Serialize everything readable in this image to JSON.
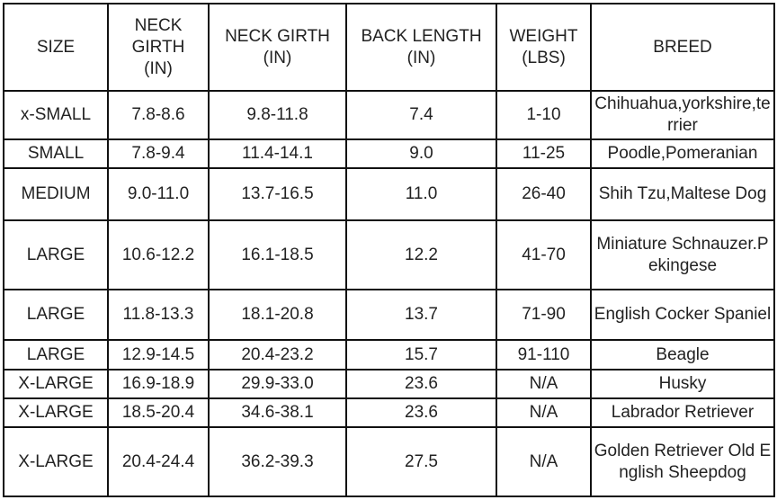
{
  "table": {
    "headers": [
      "SIZE",
      "NECK GIRTH (IN)",
      "NECK GIRTH (IN)",
      "BACK LENGTH (IN)",
      "WEIGHT (LBS)",
      "BREED"
    ],
    "rows": [
      [
        "x-SMALL",
        "7.8-8.6",
        "9.8-11.8",
        "7.4",
        "1-10",
        "Chihuahua,yorkshire,terrier"
      ],
      [
        "SMALL",
        "7.8-9.4",
        "11.4-14.1",
        "9.0",
        "11-25",
        "Poodle,Pomeranian"
      ],
      [
        "MEDIUM",
        "9.0-11.0",
        "13.7-16.5",
        "11.0",
        "26-40",
        "Shih Tzu,Maltese Dog"
      ],
      [
        "LARGE",
        "10.6-12.2",
        "16.1-18.5",
        "12.2",
        "41-70",
        "Miniature Schnauzer.Pekingese"
      ],
      [
        "LARGE",
        "11.8-13.3",
        "18.1-20.8",
        "13.7",
        "71-90",
        "English Cocker Spaniel"
      ],
      [
        "LARGE",
        "12.9-14.5",
        "20.4-23.2",
        "15.7",
        "91-110",
        "Beagle"
      ],
      [
        "X-LARGE",
        "16.9-18.9",
        "29.9-33.0",
        "23.6",
        "N/A",
        "Husky"
      ],
      [
        "X-LARGE",
        "18.5-20.4",
        "34.6-38.1",
        "23.6",
        "N/A",
        "Labrador Retriever"
      ],
      [
        "X-LARGE",
        "20.4-24.4",
        "36.2-39.3",
        "27.5",
        "N/A",
        "Golden Retriever Old English Sheepdog"
      ]
    ]
  }
}
